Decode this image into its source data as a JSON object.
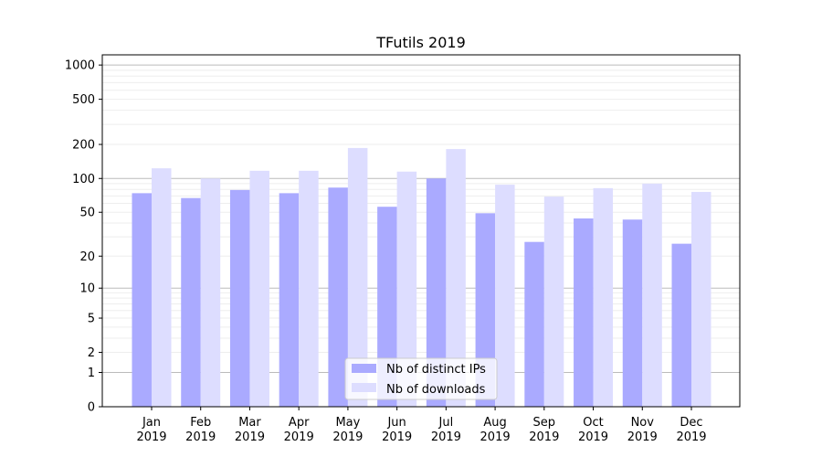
{
  "chart_data": {
    "type": "bar",
    "title": "TFutils 2019",
    "xlabel": "",
    "ylabel": "",
    "yscale": "log(1+y)",
    "ylim": [
      0,
      1230
    ],
    "yticks": [
      0,
      1,
      2,
      5,
      10,
      20,
      50,
      100,
      200,
      500,
      1000
    ],
    "grid": true,
    "legend_position": "lower-center",
    "categories": [
      "Jan\n2019",
      "Feb\n2019",
      "Mar\n2019",
      "Apr\n2019",
      "May\n2019",
      "Jun\n2019",
      "Jul\n2019",
      "Aug\n2019",
      "Sep\n2019",
      "Oct\n2019",
      "Nov\n2019",
      "Dec\n2019"
    ],
    "series": [
      {
        "name": "Nb of distinct IPs",
        "color": "#aaaaff",
        "values": [
          74,
          67,
          79,
          74,
          83,
          56,
          100,
          49,
          27,
          44,
          43,
          26
        ]
      },
      {
        "name": "Nb of downloads",
        "color": "#ddddff",
        "values": [
          123,
          100,
          117,
          117,
          186,
          115,
          182,
          88,
          69,
          82,
          90,
          76
        ]
      }
    ]
  }
}
